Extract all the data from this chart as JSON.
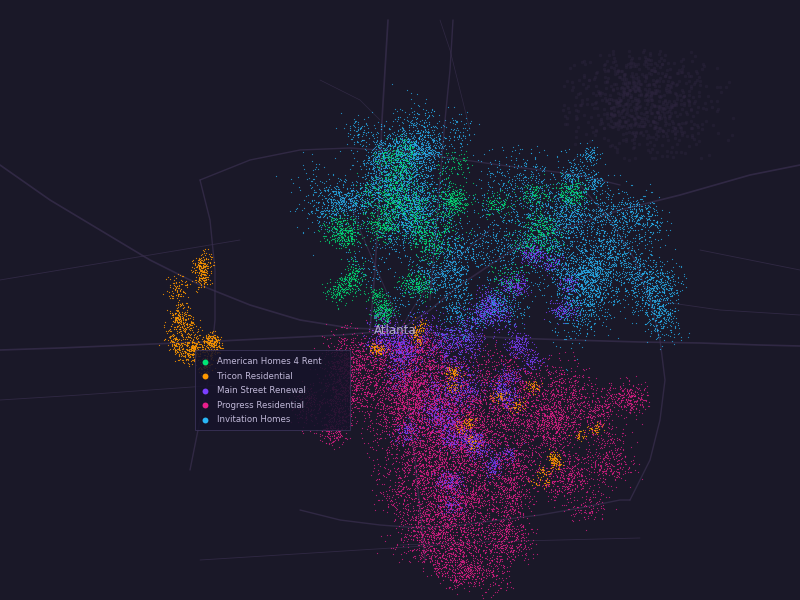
{
  "background_color": "#1a1828",
  "map_background": "#1e1b2c",
  "city_label": "Atlanta",
  "city_label_color": "#b0aac8",
  "city_label_fontsize": 8.5,
  "legend_entries": [
    {
      "label": "American Homes 4 Rent",
      "color": "#00e676"
    },
    {
      "label": "Tricon Residential",
      "color": "#ff9800"
    },
    {
      "label": "Main Street Renewal",
      "color": "#7b3fff"
    },
    {
      "label": "Progress Residential",
      "color": "#e91e8c"
    },
    {
      "label": "Invitation Homes",
      "color": "#29b6f6"
    }
  ],
  "road_color": "#3a3050",
  "road_alpha": 0.7,
  "dot_size": 0.8
}
